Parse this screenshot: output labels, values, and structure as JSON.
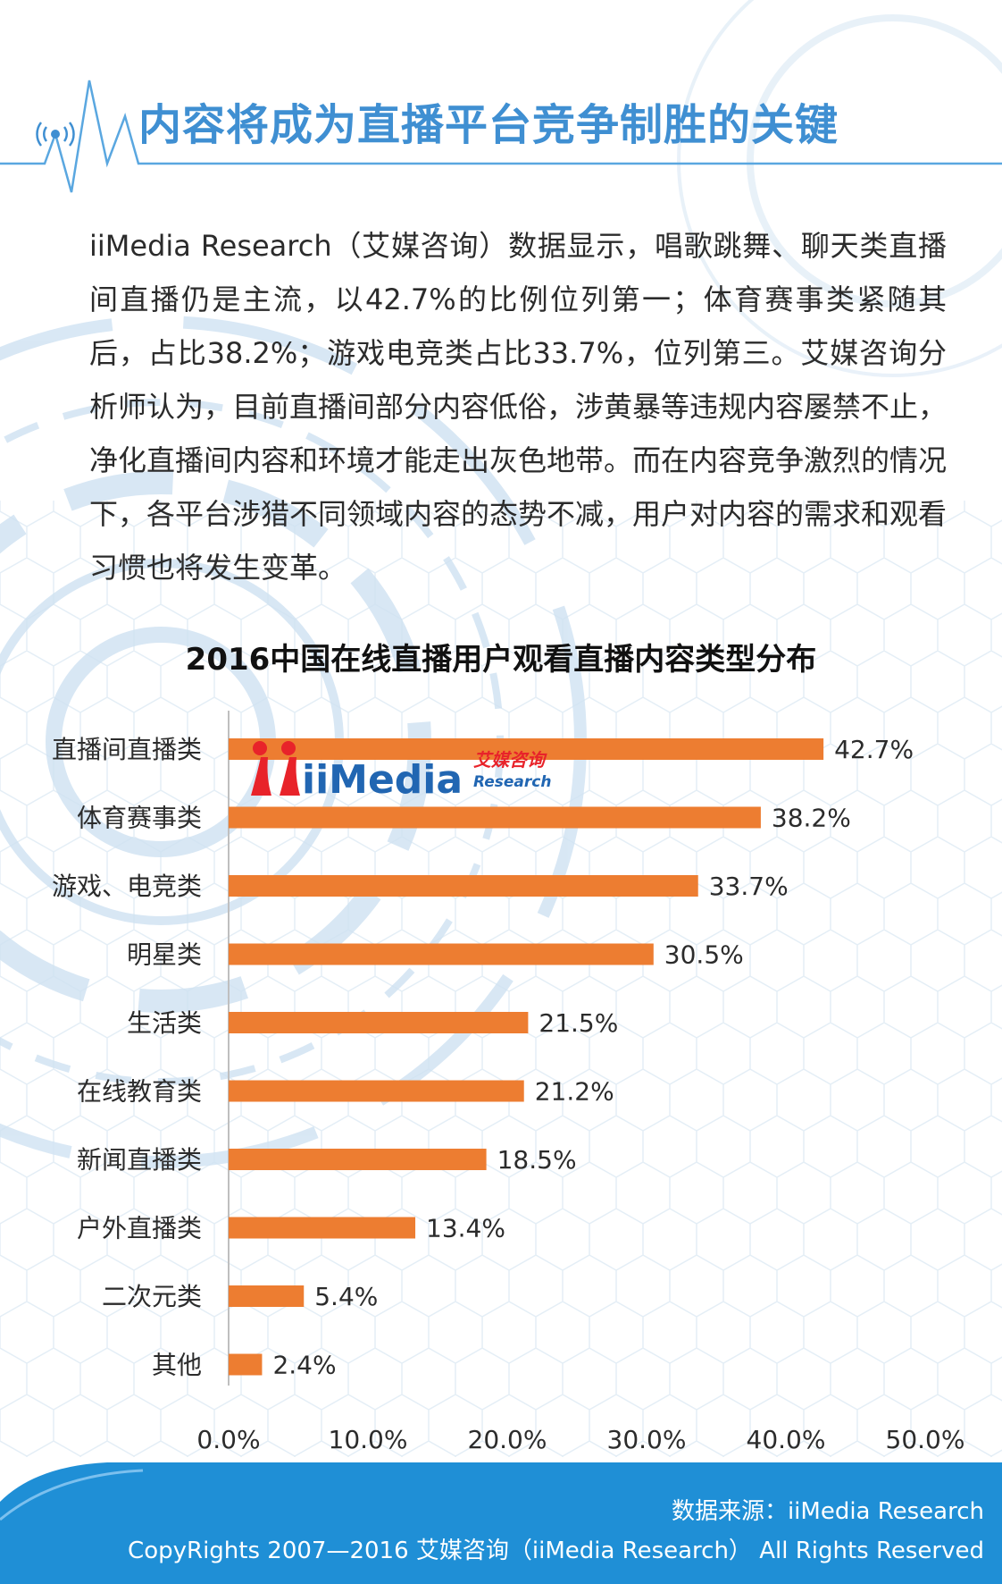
{
  "header": {
    "title": "内容将成为直播平台竞争制胜的关键"
  },
  "intro": {
    "text": "iiMedia Research（艾媒咨询）数据显示，唱歌跳舞、聊天类直播间直播仍是主流，以42.7%的比例位列第一；体育赛事类紧随其后，占比38.2%；游戏电竞类占比33.7%，位列第三。艾媒咨询分析师认为，目前直播间部分内容低俗，涉黄暴等违规内容屡禁不止，净化直播间内容和环境才能走出灰色地带。而在内容竞争激烈的情况下，各平台涉猎不同领域内容的态势不减，用户对内容的需求和观看习惯也将发生变革。"
  },
  "logo": {
    "text": "iiMedia",
    "cn": "艾媒咨询",
    "en": "Research"
  },
  "chart_data": {
    "type": "bar",
    "orientation": "horizontal",
    "title": "2016中国在线直播用户观看直播内容类型分布",
    "categories": [
      "直播间直播类",
      "体育赛事类",
      "游戏、电竞类",
      "明星类",
      "生活类",
      "在线教育类",
      "新闻直播类",
      "户外直播类",
      "二次元类",
      "其他"
    ],
    "values": [
      42.7,
      38.2,
      33.7,
      30.5,
      21.5,
      21.2,
      18.5,
      13.4,
      5.4,
      2.4
    ],
    "value_labels": [
      "42.7%",
      "38.2%",
      "33.7%",
      "30.5%",
      "21.5%",
      "21.2%",
      "18.5%",
      "13.4%",
      "5.4%",
      "2.4%"
    ],
    "xlim": [
      0,
      50
    ],
    "x_ticks": [
      "0.0%",
      "10.0%",
      "20.0%",
      "30.0%",
      "40.0%",
      "50.0%"
    ],
    "xlabel": "",
    "ylabel": "",
    "grid": false,
    "bar_color": "#ed7d31"
  },
  "footer": {
    "source": "数据来源：iiMedia Research",
    "copyright": "CopyRights 2007—2016 艾媒咨询（iiMedia Research） All Rights Reserved"
  },
  "colors": {
    "title_blue": "#3f8fd2",
    "footer_blue": "#1f8fd6",
    "bar_orange": "#ed7d31",
    "logo_red": "#e8232a",
    "logo_blue": "#2166b2"
  }
}
